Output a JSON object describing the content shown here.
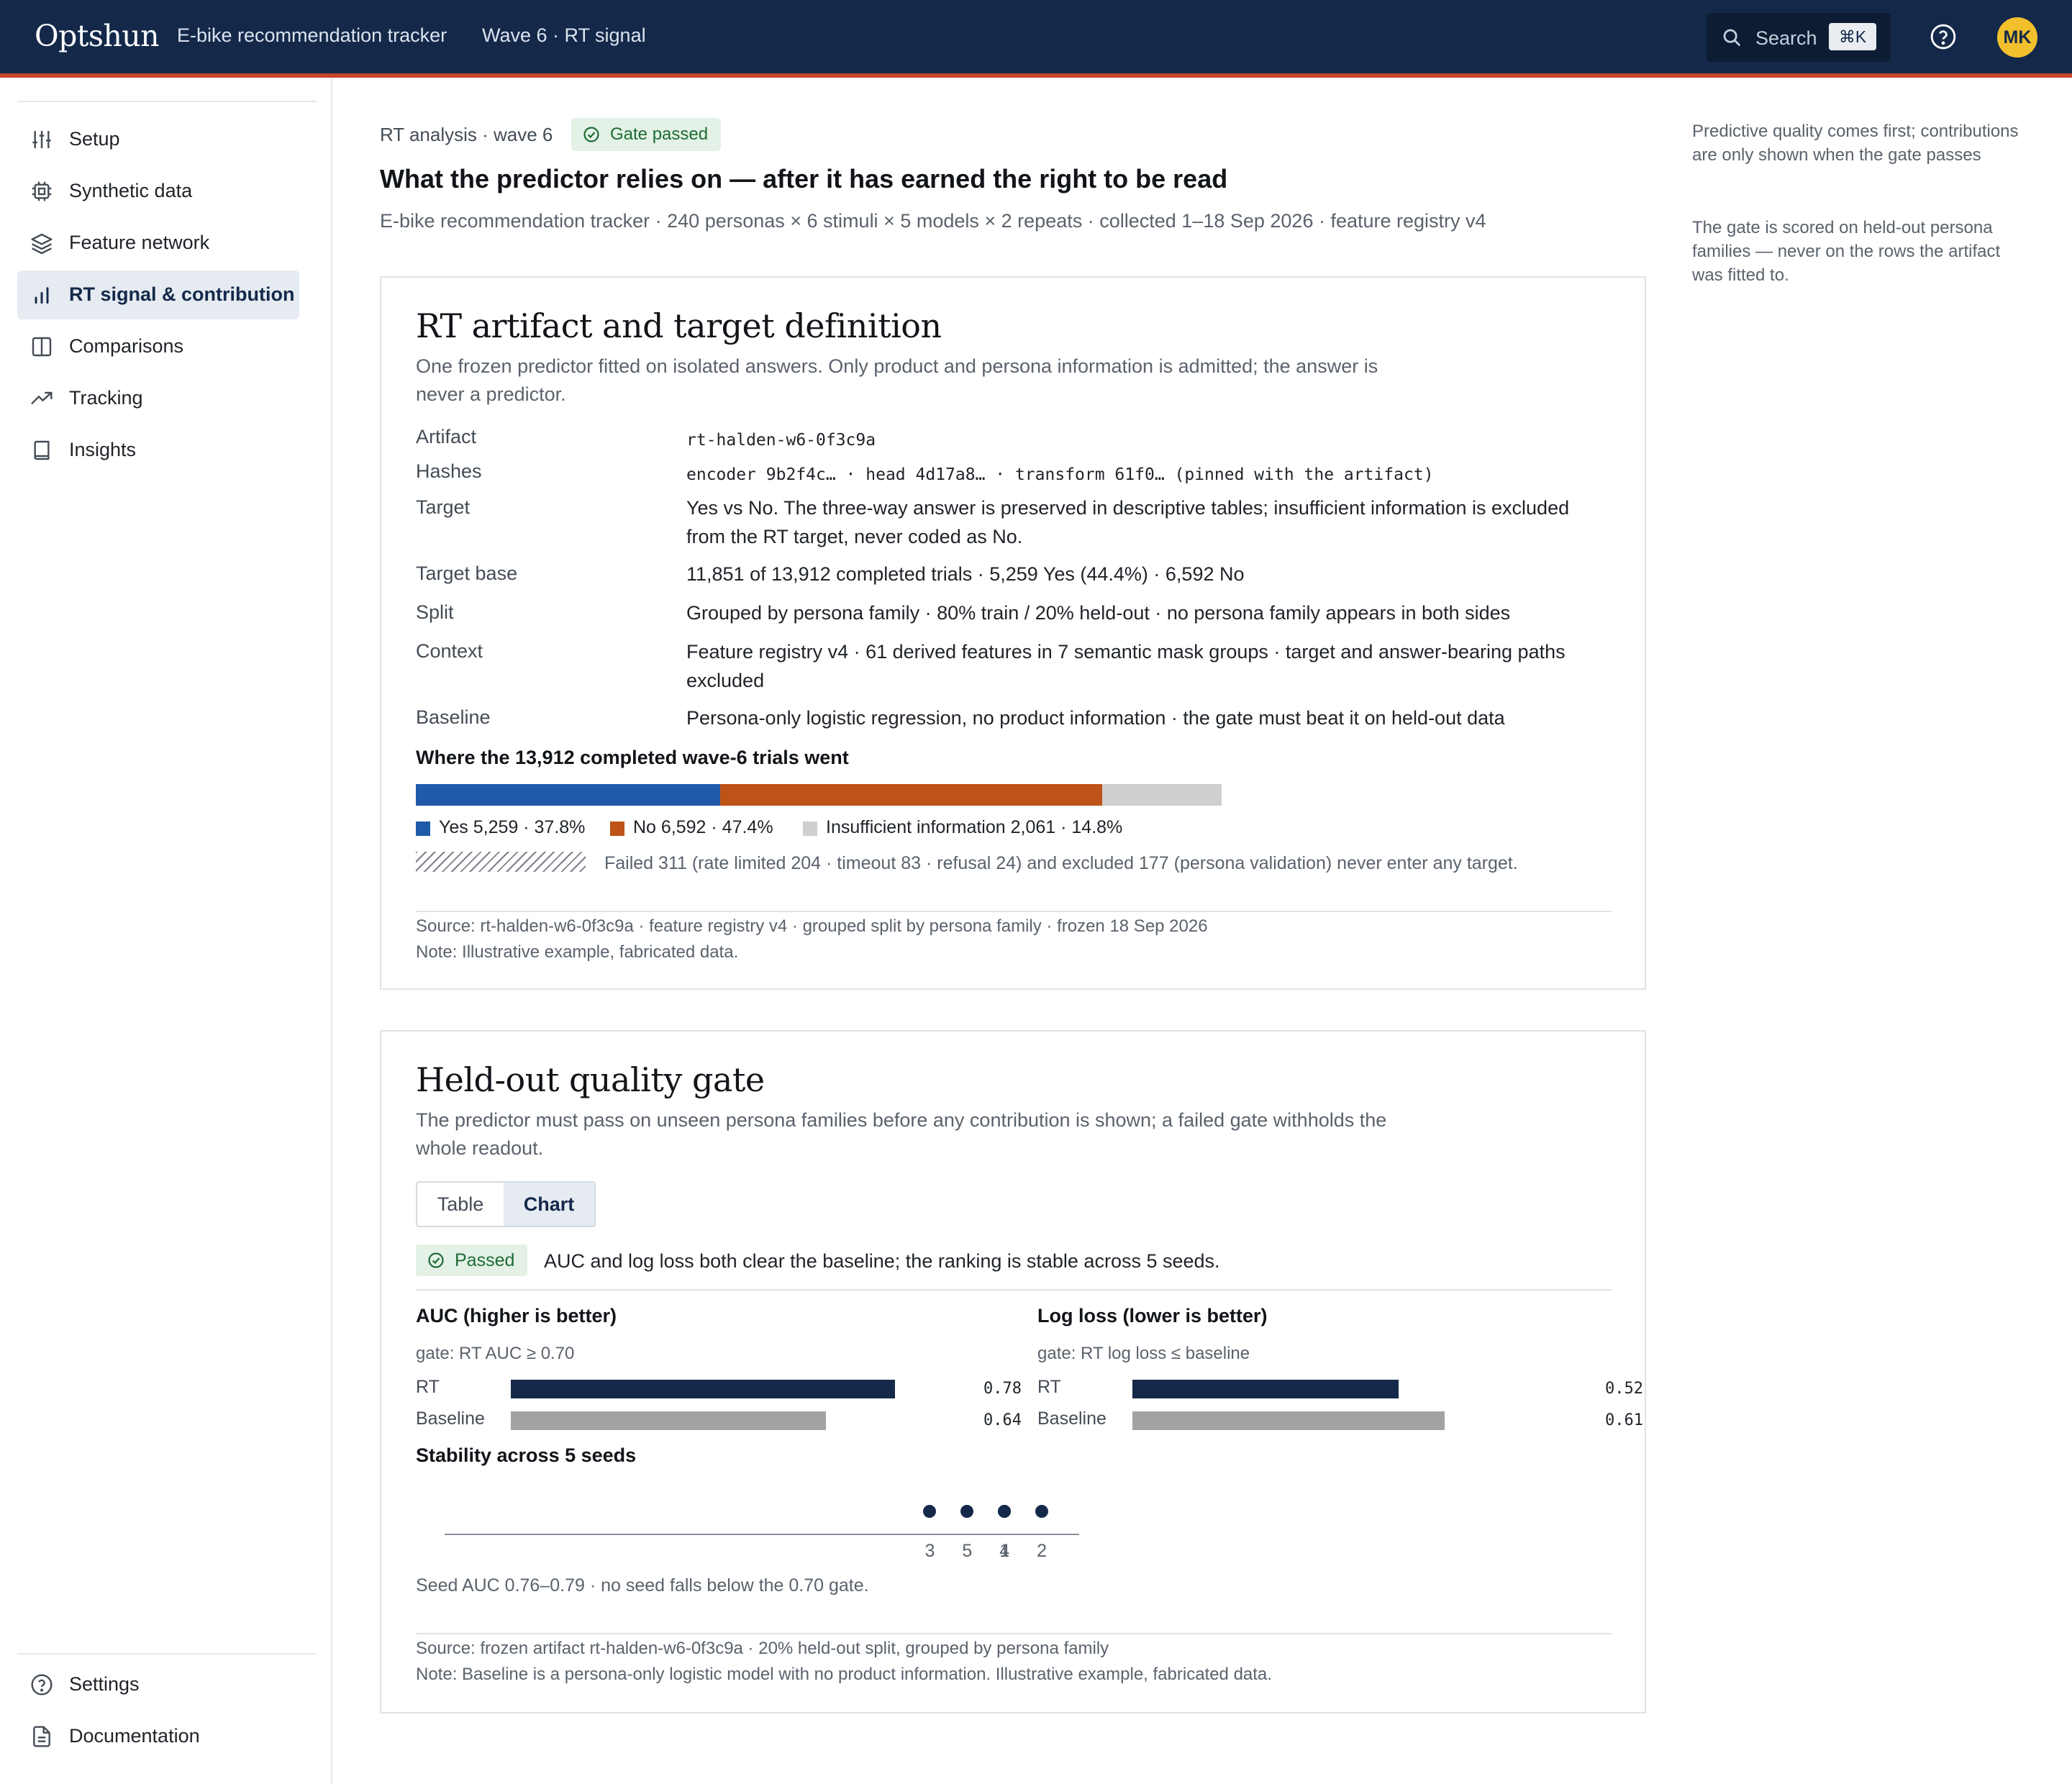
{
  "header": {
    "brand": "Optshun",
    "nav": [
      "E-bike recommendation tracker",
      "Wave 6 · RT signal"
    ],
    "search_label": "Search",
    "search_shortcut": "⌘K",
    "avatar_initials": "MK"
  },
  "sidebar": {
    "items": [
      {
        "label": "Setup",
        "icon": "sliders-icon"
      },
      {
        "label": "Synthetic data",
        "icon": "chip-icon"
      },
      {
        "label": "Feature network",
        "icon": "layers-icon"
      },
      {
        "label": "RT signal & contribution",
        "icon": "bar-chart-icon",
        "active": true
      },
      {
        "label": "Comparisons",
        "icon": "columns-icon"
      },
      {
        "label": "Tracking",
        "icon": "trend-icon"
      },
      {
        "label": "Insights",
        "icon": "book-icon"
      }
    ],
    "footer_items": [
      {
        "label": "Settings",
        "icon": "help-circle-icon"
      },
      {
        "label": "Documentation",
        "icon": "document-icon"
      }
    ]
  },
  "page": {
    "eyebrow": "RT analysis · wave 6",
    "gate_badge": "Gate passed",
    "title": "What the predictor relies on — after it has earned the right to be read",
    "subtitle": "E-bike recommendation tracker · 240 personas × 6 stimuli × 5 models × 2 repeats · collected 1–18 Sep 2026 · feature registry v4"
  },
  "aside": [
    "Predictive quality comes first; contributions are only shown when the gate passes",
    "The gate is scored on held-out persona families — never on the rows the artifact was fitted to."
  ],
  "artifact_card": {
    "title": "RT artifact and target definition",
    "intro": "One frozen predictor fitted on isolated answers. Only product and persona information is admitted; the answer is never a predictor.",
    "rows": [
      {
        "term": "Artifact",
        "def": "rt-halden-w6-0f3c9a",
        "mono": true
      },
      {
        "term": "Hashes",
        "def": "encoder 9b2f4c… · head 4d17a8… · transform 61f0… (pinned with the artifact)",
        "mono": true
      },
      {
        "term": "Target",
        "def": "Yes vs No. The three-way answer is preserved in descriptive tables; insufficient information is excluded from the RT target, never coded as No."
      },
      {
        "term": "Target base",
        "def": "11,851 of 13,912 completed trials · 5,259 Yes (44.4%) · 6,592 No"
      },
      {
        "term": "Split",
        "def": "Grouped by persona family · 80% train / 20% held-out · no persona family appears in both sides"
      },
      {
        "term": "Context",
        "def": "Feature registry v4 · 61 derived features in 7 semantic mask groups · target and answer-bearing paths excluded"
      },
      {
        "term": "Baseline",
        "def": "Persona-only logistic regression, no product information · the gate must beat it on held-out data"
      }
    ],
    "distribution_heading": "Where the 13,912 completed wave-6 trials went",
    "distribution": [
      {
        "label": "Yes 5,259 · 37.8%",
        "share": 37.8,
        "color": "#1f5aa8"
      },
      {
        "label": "No 6,592 · 47.4%",
        "share": 47.4,
        "color": "#bd5317"
      },
      {
        "label": "Insufficient information 2,061 · 14.8%",
        "share": 14.8,
        "color": "#cfcfcf"
      }
    ],
    "failed_note": "Failed 311 (rate limited 204 · timeout 83 · refusal 24) and excluded 177 (persona validation) never enter any target.",
    "source": "Source: rt-halden-w6-0f3c9a · feature registry v4 · grouped split by persona family · frozen 18 Sep 2026",
    "note": "Note: Illustrative example, fabricated data."
  },
  "gate_card": {
    "title": "Held-out quality gate",
    "intro": "The predictor must pass on unseen persona families before any contribution is shown; a failed gate withholds the whole readout.",
    "tabs": [
      "Table",
      "Chart"
    ],
    "active_tab": "Chart",
    "status_badge": "Passed",
    "status_text": "AUC and log loss both clear the baseline; the ranking is stable across 5 seeds.",
    "stability_heading": "Stability across 5 seeds",
    "stability_note": "Seed AUC 0.76–0.79 · no seed falls below the 0.70 gate.",
    "source": "Source: frozen artifact rt-halden-w6-0f3c9a · 20% held-out split, grouped by persona family",
    "note": "Note: Baseline is a persona-only logistic model with no product information. Illustrative example, fabricated data."
  },
  "chart_data": [
    {
      "type": "bar",
      "title": "AUC (higher is better)",
      "subtitle": "gate: RT AUC ≥ 0.70",
      "categories": [
        "RT",
        "Baseline"
      ],
      "values": [
        0.78,
        0.64
      ],
      "value_labels": [
        "0.78",
        "0.64"
      ],
      "colors": [
        "#14294a",
        "#a3a3a3"
      ],
      "xlim": [
        0,
        0.78
      ]
    },
    {
      "type": "bar",
      "title": "Log loss (lower is better)",
      "subtitle": "gate: RT log loss ≤ baseline",
      "categories": [
        "RT",
        "Baseline"
      ],
      "values": [
        0.52,
        0.61
      ],
      "value_labels": [
        "0.52",
        "0.61"
      ],
      "colors": [
        "#14294a",
        "#a3a3a3"
      ],
      "xlim": [
        0,
        0.75
      ]
    },
    {
      "type": "scatter",
      "title": "Stability across 5 seeds",
      "points": [
        {
          "seed": "3",
          "auc": 0.76
        },
        {
          "seed": "5",
          "auc": 0.77
        },
        {
          "seed": "4",
          "auc": 0.78
        },
        {
          "seed": "1",
          "auc": 0.78
        },
        {
          "seed": "2",
          "auc": 0.79
        }
      ],
      "xlim": [
        0.63,
        0.8
      ],
      "color": "#14294a"
    }
  ]
}
